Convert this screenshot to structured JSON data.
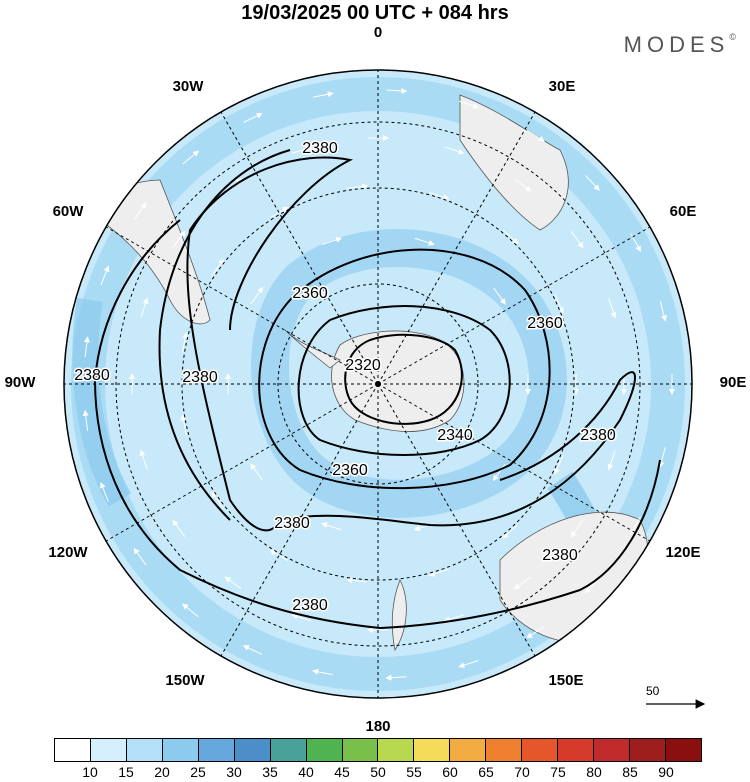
{
  "header": {
    "title": "19/03/2025  00 UTC  + 084 hrs",
    "brand": "MODES",
    "brand_mark": "©"
  },
  "map": {
    "projection": "south polar stereographic",
    "longitude_labels": [
      "0",
      "30E",
      "60E",
      "90E",
      "120E",
      "150E",
      "180",
      "150W",
      "120W",
      "90W",
      "60W",
      "30W"
    ],
    "contour_labels": [
      "2380",
      "2380",
      "2380",
      "2380",
      "2380",
      "2380",
      "2380",
      "2360",
      "2360",
      "2360",
      "2340",
      "2320"
    ],
    "vector_reference": {
      "value": "50"
    },
    "colors": {
      "land": "#eeeeee",
      "shade_light": "#c7e9f9",
      "shade_mid": "#9ed4f2"
    }
  },
  "legend": {
    "ticks": [
      "10",
      "15",
      "20",
      "25",
      "30",
      "35",
      "40",
      "45",
      "50",
      "55",
      "60",
      "65",
      "70",
      "75",
      "80",
      "85",
      "90"
    ],
    "colors": [
      "#ffffff",
      "#d6effc",
      "#b3e0f8",
      "#8ccaee",
      "#66a8dc",
      "#4c8ec7",
      "#48a29a",
      "#4fb34f",
      "#78c04a",
      "#b8d850",
      "#f4dc5a",
      "#f2ac42",
      "#ee8030",
      "#e5572b",
      "#d63a2b",
      "#c02a2a",
      "#9e1e1e",
      "#8a1010"
    ]
  }
}
